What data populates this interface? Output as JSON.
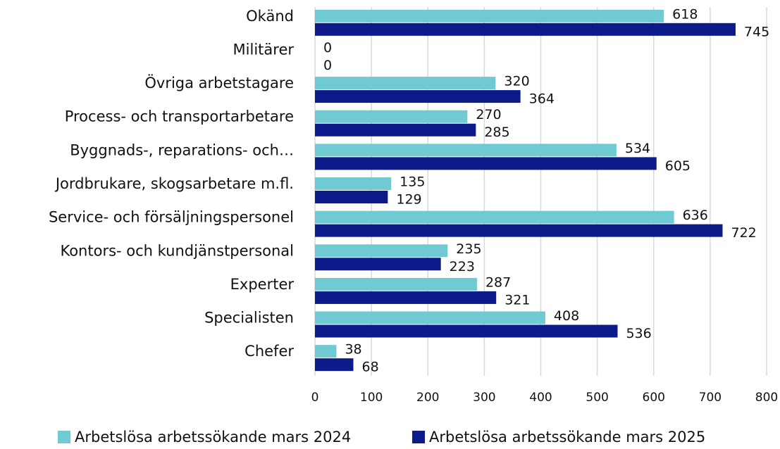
{
  "chart_data": {
    "type": "bar",
    "orientation": "horizontal",
    "categories": [
      "Okänd",
      "Militärer",
      "Övriga arbetstagare",
      "Process- och transportarbetare",
      "Byggnads-, reparations- och…",
      "Jordbrukare, skogsarbetare m.fl.",
      "Service- och försäljningspersonel",
      "Kontors- och kundjänstpersonal",
      "Experter",
      "Specialisten",
      "Chefer"
    ],
    "series": [
      {
        "name": "Arbetslösa arbetssökande mars 2024",
        "color": "#6fcad3",
        "values": [
          618,
          0,
          320,
          270,
          534,
          135,
          636,
          235,
          287,
          408,
          38
        ]
      },
      {
        "name": "Arbetslösa arbetssökande mars 2025",
        "color": "#0c1a8a",
        "values": [
          745,
          0,
          364,
          285,
          605,
          129,
          722,
          223,
          321,
          536,
          68
        ]
      }
    ],
    "xlim": [
      0,
      800
    ],
    "xticks": [
      0,
      100,
      200,
      300,
      400,
      500,
      600,
      700,
      800
    ],
    "grid": true,
    "legend": "bottom"
  }
}
